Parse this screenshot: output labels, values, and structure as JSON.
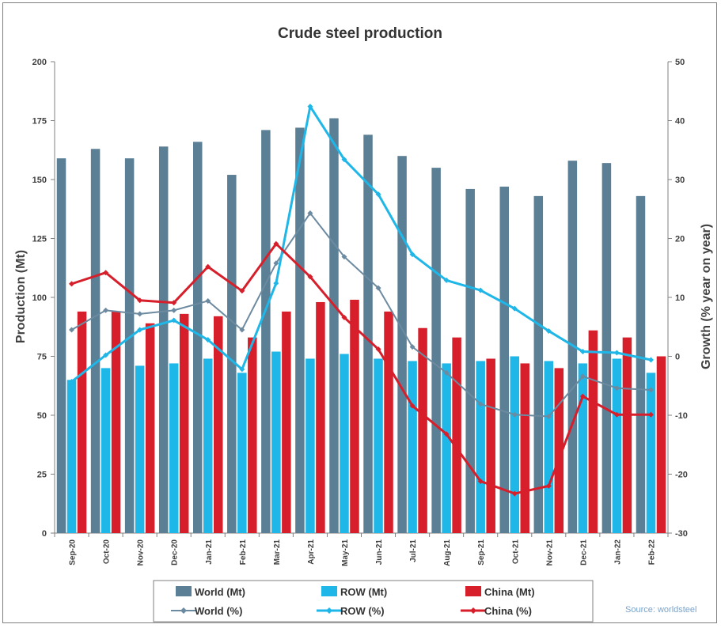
{
  "chart_data": {
    "type": "bar",
    "title": "Crude steel production",
    "ylabel": "Production (Mt)",
    "y2label": "Growth (% year on year)",
    "ylim": [
      0,
      200
    ],
    "y2lim": [
      -30,
      50
    ],
    "yticks": [
      "0",
      "25",
      "50",
      "75",
      "100",
      "125",
      "150",
      "175",
      "200"
    ],
    "y2ticks": [
      "-30",
      "-20",
      "-10",
      "0",
      "10",
      "20",
      "30",
      "40",
      "50"
    ],
    "categories": [
      "Sep-20",
      "Oct-20",
      "Nov-20",
      "Dec-20",
      "Jan-21",
      "Feb-21",
      "Mar-21",
      "Apr-21",
      "May-21",
      "Jun-21",
      "Jul-21",
      "Aug-21",
      "Sep-21",
      "Oct-21",
      "Nov-21",
      "Dec-21",
      "Jan-22",
      "Feb-22"
    ],
    "series": [
      {
        "name": "World (Mt)",
        "kind": "bar",
        "axis": "left",
        "color": "#5b7f95",
        "values": [
          159,
          163,
          159,
          164,
          166,
          152,
          171,
          172,
          176,
          169,
          160,
          155,
          146,
          147,
          143,
          158,
          157,
          143
        ]
      },
      {
        "name": "ROW (Mt)",
        "kind": "bar",
        "axis": "left",
        "color": "#1fb6e8",
        "values": [
          65,
          70,
          71,
          72,
          74,
          68,
          77,
          74,
          76,
          74,
          73,
          72,
          73,
          75,
          73,
          72,
          74,
          68
        ]
      },
      {
        "name": "China (Mt)",
        "kind": "bar",
        "axis": "left",
        "color": "#d71f2b",
        "values": [
          94,
          94,
          89,
          93,
          92,
          83,
          94,
          98,
          99,
          94,
          87,
          83,
          74,
          72,
          70,
          86,
          83,
          75
        ]
      },
      {
        "name": "World (%)",
        "kind": "line",
        "axis": "right",
        "color": "#6c8aa0",
        "values": [
          4.5,
          7.8,
          7.2,
          7.8,
          9.4,
          4.5,
          15.8,
          24.3,
          16.9,
          11.6,
          1.6,
          -2.8,
          -8.1,
          -9.9,
          -10.2,
          -3.4,
          -5.4,
          -5.7
        ]
      },
      {
        "name": "ROW (%)",
        "kind": "line",
        "axis": "right",
        "color": "#1fb6e8",
        "values": [
          -4.3,
          0.2,
          4.5,
          6.1,
          2.8,
          -2.2,
          12.4,
          42.4,
          33.4,
          27.5,
          17.3,
          12.9,
          11.2,
          8.1,
          4.3,
          0.8,
          0.6,
          -0.6
        ]
      },
      {
        "name": "China (%)",
        "kind": "line",
        "axis": "right",
        "color": "#d71f2b",
        "values": [
          12.3,
          14.2,
          9.5,
          9.1,
          15.2,
          11.1,
          19.1,
          13.5,
          6.6,
          1.2,
          -8.4,
          -13.2,
          -21.2,
          -23.3,
          -22.0,
          -6.8,
          -9.9,
          -9.9
        ]
      }
    ],
    "legend_position": "bottom",
    "grid": false
  },
  "source_text": "Source: worldsteel"
}
